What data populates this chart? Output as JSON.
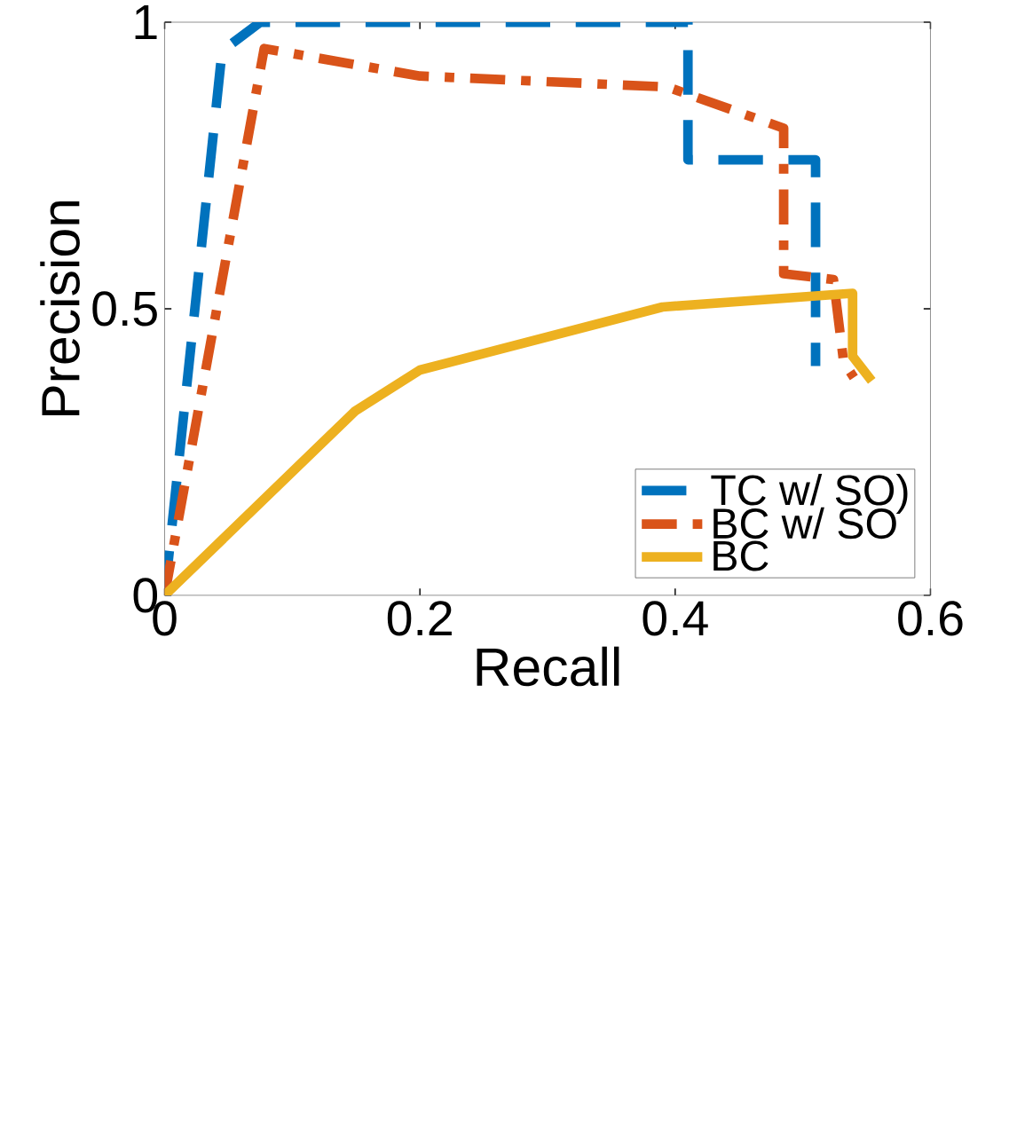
{
  "chart_data": {
    "type": "line",
    "xlabel": "Recall",
    "ylabel": "Precision",
    "xlim": [
      0,
      0.6
    ],
    "ylim": [
      0,
      1
    ],
    "xticks": [
      0,
      0.2,
      0.4,
      0.6
    ],
    "yticks": [
      0,
      0.5,
      1
    ],
    "grid": false,
    "legend": "bottom right",
    "marker": "none",
    "series": [
      {
        "name": "TC w/ SO)",
        "color": "#0072bd",
        "line_style": "dashed",
        "x": [
          0,
          0.045,
          0.075,
          0.41,
          0.41,
          0.48,
          0.51,
          0.51
        ],
        "values": [
          0,
          0.95,
          1,
          1,
          0.76,
          0.76,
          0.76,
          0.4
        ]
      },
      {
        "name": "BC w/ SO",
        "color": "#d95319",
        "line_style": "dashdot",
        "x": [
          0,
          0.078,
          0.2,
          0.394,
          0.485,
          0.485,
          0.524,
          0.532,
          0.54
        ],
        "values": [
          0,
          0.954,
          0.906,
          0.887,
          0.815,
          0.561,
          0.551,
          0.407,
          0.38
        ]
      },
      {
        "name": "BC",
        "color": "#edb120",
        "line_style": "solid",
        "x": [
          0,
          0.149,
          0.2,
          0.39,
          0.539,
          0.539,
          0.554
        ],
        "values": [
          0,
          0.321,
          0.393,
          0.503,
          0.527,
          0.417,
          0.374
        ]
      }
    ]
  }
}
